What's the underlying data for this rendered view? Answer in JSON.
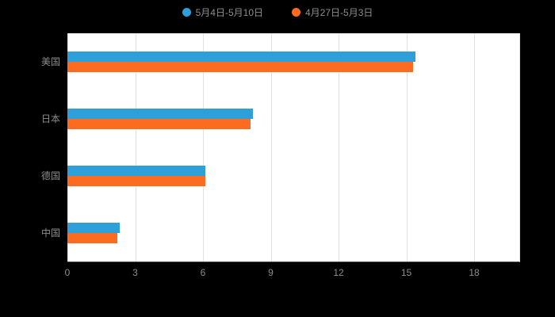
{
  "page": {
    "background_color": "#000000",
    "plot_background_color": "#ffffff"
  },
  "legend": {
    "items": [
      {
        "label": "5月4日-5月10日",
        "color": "#2E9FD9"
      },
      {
        "label": "4月27日-5月3日",
        "color": "#FB6B20"
      }
    ]
  },
  "chart_data": {
    "type": "bar",
    "orientation": "horizontal",
    "title": "",
    "xlabel": "",
    "ylabel": "",
    "grid": true,
    "legend_position": "top",
    "categories": [
      "美国",
      "日本",
      "德国",
      "中国"
    ],
    "series": [
      {
        "name": "5月4日-5月10日",
        "color": "#2E9FD9",
        "values": [
          15.4,
          8.2,
          6.1,
          2.3
        ]
      },
      {
        "name": "4月27日-5月3日",
        "color": "#FB6B20",
        "values": [
          15.3,
          8.1,
          6.1,
          2.2
        ]
      }
    ],
    "x_ticks": [
      0,
      3,
      6,
      9,
      12,
      15,
      18
    ],
    "xlim": [
      0,
      20
    ]
  }
}
